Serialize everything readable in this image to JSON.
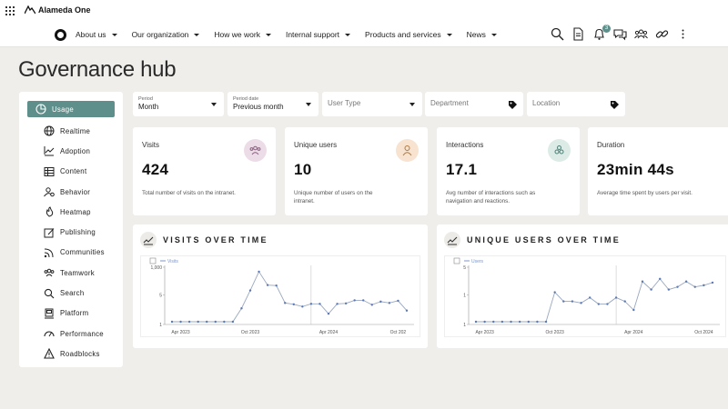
{
  "app": {
    "brand": "Alameda One"
  },
  "nav": {
    "items": [
      {
        "label": "About us"
      },
      {
        "label": "Our organization"
      },
      {
        "label": "How we work"
      },
      {
        "label": "Internal support"
      },
      {
        "label": "Products and services"
      },
      {
        "label": "News"
      }
    ],
    "icons": [
      "search-icon",
      "document-icon",
      "bell-icon",
      "chat-icon",
      "people-icon",
      "link-icon",
      "more-vertical-icon"
    ],
    "notification_count": "3"
  },
  "page": {
    "title": "Governance hub"
  },
  "sidebar": {
    "items": [
      {
        "label": "Usage",
        "icon": "usage-icon"
      },
      {
        "label": "Realtime",
        "icon": "globe-icon"
      },
      {
        "label": "Adoption",
        "icon": "trend-icon"
      },
      {
        "label": "Content",
        "icon": "table-icon"
      },
      {
        "label": "Behavior",
        "icon": "user-gear-icon"
      },
      {
        "label": "Heatmap",
        "icon": "heatmap-icon"
      },
      {
        "label": "Publishing",
        "icon": "publish-icon"
      },
      {
        "label": "Communities",
        "icon": "rss-icon"
      },
      {
        "label": "Teamwork",
        "icon": "team-icon"
      },
      {
        "label": "Search",
        "icon": "search-icon"
      },
      {
        "label": "Platform",
        "icon": "platform-icon"
      },
      {
        "label": "Performance",
        "icon": "gauge-icon"
      },
      {
        "label": "Roadblocks",
        "icon": "warning-icon"
      }
    ]
  },
  "filters": {
    "period": {
      "label": "Period",
      "value": "Month"
    },
    "period_date": {
      "label": "Period date",
      "value": "Previous month"
    },
    "user_type": {
      "placeholder": "User Type"
    },
    "department": {
      "placeholder": "Department"
    },
    "location": {
      "placeholder": "Location"
    }
  },
  "kpis": [
    {
      "title": "Visits",
      "value": "424",
      "desc": "Total number of visits on the intranet.",
      "icon_color": "#ecdce7"
    },
    {
      "title": "Unique users",
      "value": "10",
      "desc": "Unique number of users on the intranet.",
      "icon_color": "#f7e3cf"
    },
    {
      "title": "Interactions",
      "value": "17.1",
      "desc": "Avg number of interactions such as navigation and reactions.",
      "icon_color": "#dcebe6"
    },
    {
      "title": "Duration",
      "value": "23min 44s",
      "desc": "Average time spent by users per visit."
    }
  ],
  "charts": {
    "visits": {
      "title": "VISITS OVER TIME",
      "legend": "Visits"
    },
    "users": {
      "title": "UNIQUE USERS OVER TIME",
      "legend": "Users"
    }
  },
  "chart_data": [
    {
      "type": "line",
      "title": "VISITS OVER TIME",
      "series": [
        {
          "name": "Visits",
          "values": [
            0,
            0,
            0,
            0,
            0,
            0,
            0,
            0,
            300,
            700,
            1120,
            820,
            810,
            420,
            390,
            340,
            400,
            400,
            180,
            400,
            410,
            480,
            480,
            380,
            450,
            420,
            470,
            250
          ]
        }
      ],
      "yticks": [
        "1,000",
        "5",
        "1"
      ],
      "xticks": [
        "Apr 2023",
        "Oct 2023",
        "Apr 2024",
        "Oct 202"
      ],
      "ylim": [
        0,
        1200
      ],
      "color": "#7c97c9"
    },
    {
      "type": "line",
      "title": "UNIQUE USERS OVER TIME",
      "series": [
        {
          "name": "Users",
          "values": [
            0,
            0,
            0,
            0,
            0,
            0,
            0,
            0,
            0,
            5.5,
            3.8,
            3.8,
            3.5,
            4.5,
            3.3,
            3.3,
            4.5,
            3.8,
            2.2,
            7.5,
            6.0,
            8.0,
            6.0,
            6.5,
            7.5,
            6.5,
            6.8,
            7.3
          ]
        }
      ],
      "yticks": [
        "5",
        "1",
        "1"
      ],
      "xticks": [
        "Apr 2023",
        "Oct 2023",
        "Apr 2024",
        "Oct 2024"
      ],
      "ylim": [
        0,
        10
      ],
      "color": "#7c97c9"
    }
  ]
}
